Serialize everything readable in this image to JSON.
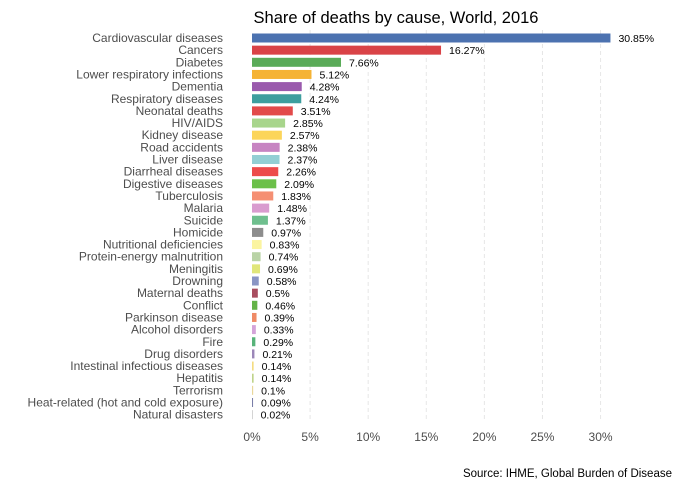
{
  "chart_data": {
    "type": "bar",
    "orientation": "horizontal",
    "title": "Share of deaths by cause, World, 2016",
    "source": "Source: IHME, Global Burden of Disease",
    "xlim": [
      0,
      31.5
    ],
    "xticks": [
      {
        "value": 0,
        "label": "0%"
      },
      {
        "value": 5,
        "label": "5%"
      },
      {
        "value": 10,
        "label": "10%"
      },
      {
        "value": 15,
        "label": "15%"
      },
      {
        "value": 20,
        "label": "20%"
      },
      {
        "value": 25,
        "label": "25%"
      },
      {
        "value": 30,
        "label": "30%"
      }
    ],
    "grid": true,
    "bars": [
      {
        "category": "Cardiovascular diseases",
        "value": 30.85,
        "label": "30.85%",
        "color": "#4c72b0"
      },
      {
        "category": "Cancers",
        "value": 16.27,
        "label": "16.27%",
        "color": "#d94347"
      },
      {
        "category": "Diabetes",
        "value": 7.66,
        "label": "7.66%",
        "color": "#5aab58"
      },
      {
        "category": "Lower respiratory infections",
        "value": 5.12,
        "label": "5.12%",
        "color": "#f5b335"
      },
      {
        "category": "Dementia",
        "value": 4.28,
        "label": "4.28%",
        "color": "#9a5aad"
      },
      {
        "category": "Respiratory diseases",
        "value": 4.24,
        "label": "4.24%",
        "color": "#3d9e9e"
      },
      {
        "category": "Neonatal deaths",
        "value": 3.51,
        "label": "3.51%",
        "color": "#e24a4a"
      },
      {
        "category": "HIV/AIDS",
        "value": 2.85,
        "label": "2.85%",
        "color": "#a8d58c"
      },
      {
        "category": "Kidney disease",
        "value": 2.57,
        "label": "2.57%",
        "color": "#fcd55a"
      },
      {
        "category": "Road accidents",
        "value": 2.38,
        "label": "2.38%",
        "color": "#c784c2"
      },
      {
        "category": "Liver disease",
        "value": 2.37,
        "label": "2.37%",
        "color": "#93cfd4"
      },
      {
        "category": "Diarrheal diseases",
        "value": 2.26,
        "label": "2.26%",
        "color": "#ed4b4b"
      },
      {
        "category": "Digestive diseases",
        "value": 2.09,
        "label": "2.09%",
        "color": "#6cc04a"
      },
      {
        "category": "Tuberculosis",
        "value": 1.83,
        "label": "1.83%",
        "color": "#f58f73"
      },
      {
        "category": "Malaria",
        "value": 1.48,
        "label": "1.48%",
        "color": "#d99ccf"
      },
      {
        "category": "Suicide",
        "value": 1.37,
        "label": "1.37%",
        "color": "#6fbf8e"
      },
      {
        "category": "Homicide",
        "value": 0.97,
        "label": "0.97%",
        "color": "#8d8d8d"
      },
      {
        "category": "Nutritional deficiencies",
        "value": 0.83,
        "label": "0.83%",
        "color": "#fbf4a0"
      },
      {
        "category": "Protein-energy malnutrition",
        "value": 0.74,
        "label": "0.74%",
        "color": "#b9d3a6"
      },
      {
        "category": "Meningitis",
        "value": 0.69,
        "label": "0.69%",
        "color": "#e0e67a"
      },
      {
        "category": "Drowning",
        "value": 0.58,
        "label": "0.58%",
        "color": "#8a95c4"
      },
      {
        "category": "Maternal deaths",
        "value": 0.5,
        "label": "0.5%",
        "color": "#a84d5f"
      },
      {
        "category": "Conflict",
        "value": 0.46,
        "label": "0.46%",
        "color": "#64b348"
      },
      {
        "category": "Parkinson disease",
        "value": 0.39,
        "label": "0.39%",
        "color": "#ef8a65"
      },
      {
        "category": "Alcohol disorders",
        "value": 0.33,
        "label": "0.33%",
        "color": "#d4a3d9"
      },
      {
        "category": "Fire",
        "value": 0.29,
        "label": "0.29%",
        "color": "#58b37a"
      },
      {
        "category": "Drug disorders",
        "value": 0.21,
        "label": "0.21%",
        "color": "#9c87b8"
      },
      {
        "category": "Intestinal infectious diseases",
        "value": 0.14,
        "label": "0.14%",
        "color": "#f4dc80"
      },
      {
        "category": "Hepatitis",
        "value": 0.14,
        "label": "0.14%",
        "color": "#bfd38a"
      },
      {
        "category": "Terrorism",
        "value": 0.1,
        "label": "0.1%",
        "color": "#e9d79a"
      },
      {
        "category": "Heat-related (hot and cold exposure)",
        "value": 0.09,
        "label": "0.09%",
        "color": "#7a7ea8"
      },
      {
        "category": "Natural disasters",
        "value": 0.02,
        "label": "0.02%",
        "color": "#b7b7b7"
      }
    ]
  }
}
